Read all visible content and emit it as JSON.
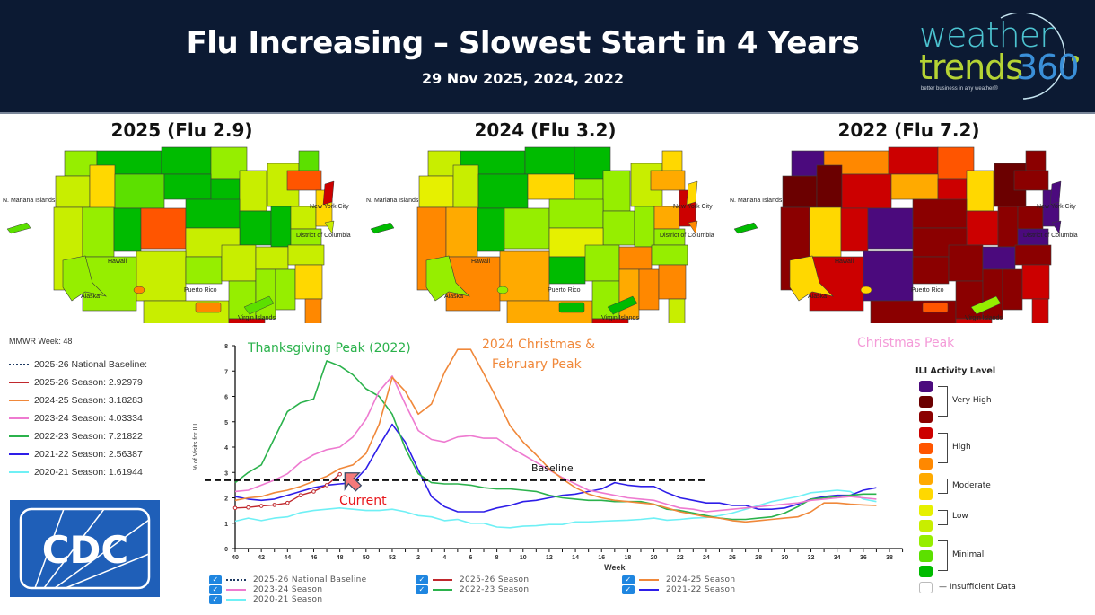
{
  "header": {
    "title": "Flu Increasing – Slowest Start in 4 Years",
    "subtitle": "29 Nov 2025, 2024, 2022",
    "logo": {
      "line1": "weather",
      "line2": "trends",
      "line2_suffix": "360",
      "tagline": "better business in any weather®"
    }
  },
  "maps": [
    {
      "title": "2025 (Flu 2.9)",
      "labels": [
        "N. Mariana Islands",
        "New York City",
        "District of Columbia",
        "Hawaii",
        "Alaska",
        "Puerto Rico",
        "Virgin Islands"
      ]
    },
    {
      "title": "2024 (Flu 3.2)",
      "labels": [
        "N. Mariana Islands",
        "New York City",
        "District of Columbia",
        "Hawaii",
        "Alaska",
        "Puerto Rico",
        "Virgin Islands"
      ]
    },
    {
      "title": "2022 (Flu 7.2)",
      "labels": [
        "N. Mariana Islands",
        "New York City",
        "District of Columbia",
        "Hawaii",
        "Alaska",
        "Puerto Rico",
        "Virgin Islands"
      ]
    }
  ],
  "left_legend": {
    "mmwr": "MMWR Week: 48",
    "rows": [
      {
        "label": "2025-26 National Baseline:",
        "color": "#1f3b63",
        "dashed": true
      },
      {
        "label": "2025-26 Season:  2.92979",
        "color": "#c0282d"
      },
      {
        "label": "2024-25 Season:  3.18283",
        "color": "#f0883a"
      },
      {
        "label": "2023-24 Season:  4.03334",
        "color": "#ee7ad0"
      },
      {
        "label": "2022-23 Season:  7.21822",
        "color": "#2bb24c"
      },
      {
        "label": "2021-22 Season:  2.56387",
        "color": "#2e1ee8"
      },
      {
        "label": "2020-21 Season:  1.61944",
        "color": "#6ff0f5"
      }
    ]
  },
  "cdc_logo": "CDC",
  "annotations": {
    "thanksgiving": "Thanksgiving Peak (2022)",
    "christmas_feb_1": "2024 Christmas &",
    "christmas_feb_2": "February Peak",
    "christmas": "Christmas Peak",
    "baseline": "Baseline",
    "current": "Current"
  },
  "ili_legend": {
    "title": "ILI Activity Level",
    "swatches": [
      "#4b0a7d",
      "#6b0000",
      "#8b0000",
      "#cc0000",
      "#ff5500",
      "#ff8800",
      "#ffaa00",
      "#ffd800",
      "#e6f000",
      "#c8ee00",
      "#96ee00",
      "#5ce000",
      "#00bb00"
    ],
    "groups": [
      "Very High",
      "High",
      "Moderate",
      "Low",
      "Minimal"
    ],
    "insufficient": "Insufficient Data"
  },
  "bottom_legend": [
    {
      "label": "2025-26 National Baseline",
      "color": "#1f3b63",
      "dashed": true
    },
    {
      "label": "2025-26 Season",
      "color": "#c0282d"
    },
    {
      "label": "2024-25 Season",
      "color": "#f0883a"
    },
    {
      "label": "2023-24 Season",
      "color": "#ee7ad0"
    },
    {
      "label": "2022-23 Season",
      "color": "#2bb24c"
    },
    {
      "label": "2021-22 Season",
      "color": "#2e1ee8"
    },
    {
      "label": "2020-21 Season",
      "color": "#6ff0f5"
    }
  ],
  "chart_data": {
    "type": "line",
    "title": "",
    "xlabel": "Week",
    "ylabel": "% of Visits for ILI",
    "ylim": [
      0,
      8
    ],
    "yticks": [
      0,
      1,
      2,
      3,
      4,
      5,
      6,
      7,
      8
    ],
    "xtick_labels": [
      "40",
      "42",
      "44",
      "46",
      "48",
      "50",
      "52",
      "2",
      "4",
      "6",
      "8",
      "10",
      "12",
      "14",
      "16",
      "18",
      "20",
      "22",
      "24",
      "26",
      "28",
      "30",
      "32",
      "34",
      "36",
      "38"
    ],
    "x_index_note": "x index 0 = week 40; index 12 = week 52; index 14 = week 2; index 51 = week 39",
    "baseline": 2.7,
    "series": [
      {
        "name": "2025-26 Season",
        "color": "#c0282d",
        "markers": true,
        "values": [
          1.6,
          1.62,
          1.68,
          1.72,
          1.8,
          2.1,
          2.25,
          2.5,
          2.93
        ]
      },
      {
        "name": "2024-25 Season",
        "color": "#f0883a",
        "values": [
          1.9,
          2.0,
          2.05,
          2.2,
          2.3,
          2.45,
          2.65,
          2.85,
          3.15,
          3.3,
          3.75,
          4.9,
          6.75,
          6.2,
          5.3,
          5.7,
          6.95,
          7.85,
          7.85,
          6.9,
          5.9,
          4.85,
          4.2,
          3.7,
          3.15,
          2.75,
          2.4,
          2.15,
          2.0,
          1.9,
          1.85,
          1.8,
          1.75,
          1.6,
          1.45,
          1.35,
          1.25,
          1.2,
          1.1,
          1.05,
          1.1,
          1.15,
          1.2,
          1.25,
          1.45,
          1.8,
          1.8,
          1.75,
          1.72,
          1.7
        ]
      },
      {
        "name": "2023-24 Season",
        "color": "#ee7ad0",
        "values": [
          2.25,
          2.3,
          2.5,
          2.7,
          2.95,
          3.4,
          3.7,
          3.9,
          4.0,
          4.4,
          5.1,
          6.2,
          6.8,
          5.7,
          4.65,
          4.3,
          4.2,
          4.4,
          4.45,
          4.35,
          4.35,
          4.0,
          3.7,
          3.4,
          3.1,
          2.8,
          2.55,
          2.3,
          2.2,
          2.1,
          2.0,
          1.95,
          1.9,
          1.75,
          1.6,
          1.55,
          1.45,
          1.5,
          1.55,
          1.6,
          1.65,
          1.7,
          1.75,
          1.8,
          1.9,
          1.95,
          2.0,
          2.05,
          2.0,
          1.95
        ]
      },
      {
        "name": "2022-23 Season",
        "color": "#2bb24c",
        "values": [
          2.6,
          3.0,
          3.3,
          4.35,
          5.4,
          5.75,
          5.9,
          7.4,
          7.2,
          6.85,
          6.3,
          6.0,
          5.3,
          3.95,
          2.95,
          2.6,
          2.55,
          2.55,
          2.5,
          2.4,
          2.35,
          2.35,
          2.3,
          2.25,
          2.1,
          2.0,
          1.95,
          1.9,
          1.9,
          1.85,
          1.85,
          1.85,
          1.75,
          1.55,
          1.5,
          1.4,
          1.3,
          1.2,
          1.15,
          1.15,
          1.2,
          1.25,
          1.4,
          1.65,
          1.95,
          2.0,
          2.05,
          2.1,
          2.15,
          2.15
        ]
      },
      {
        "name": "2021-22 Season",
        "color": "#2e1ee8",
        "values": [
          2.05,
          1.95,
          1.9,
          1.95,
          2.1,
          2.25,
          2.4,
          2.5,
          2.55,
          2.6,
          3.15,
          4.05,
          4.9,
          4.2,
          3.1,
          2.05,
          1.65,
          1.45,
          1.45,
          1.45,
          1.6,
          1.7,
          1.85,
          1.9,
          2.0,
          2.1,
          2.15,
          2.25,
          2.35,
          2.6,
          2.5,
          2.45,
          2.45,
          2.2,
          2.0,
          1.9,
          1.8,
          1.8,
          1.7,
          1.7,
          1.55,
          1.55,
          1.6,
          1.75,
          1.95,
          2.05,
          2.1,
          2.1,
          2.3,
          2.4
        ]
      },
      {
        "name": "2020-21 Season",
        "color": "#6ff0f5",
        "values": [
          1.08,
          1.2,
          1.1,
          1.2,
          1.25,
          1.42,
          1.5,
          1.55,
          1.6,
          1.55,
          1.5,
          1.5,
          1.55,
          1.45,
          1.3,
          1.25,
          1.1,
          1.15,
          1.0,
          1.0,
          0.85,
          0.82,
          0.88,
          0.9,
          0.95,
          0.95,
          1.05,
          1.05,
          1.08,
          1.1,
          1.12,
          1.15,
          1.2,
          1.12,
          1.15,
          1.2,
          1.22,
          1.3,
          1.4,
          1.55,
          1.7,
          1.85,
          1.95,
          2.05,
          2.2,
          2.25,
          2.3,
          2.25,
          1.95,
          1.85
        ]
      }
    ],
    "legend": "left"
  }
}
